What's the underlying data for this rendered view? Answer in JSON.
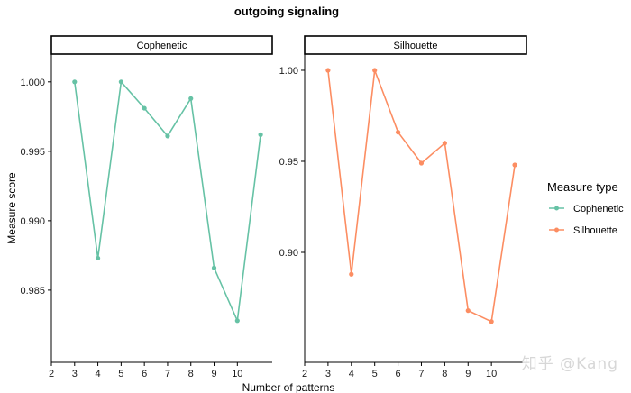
{
  "chart_data": {
    "type": "line",
    "title": "outgoing signaling",
    "xlabel": "Number of patterns",
    "ylabel": "Measure score",
    "legend": {
      "title": "Measure type",
      "placement": "right",
      "entries": [
        {
          "name": "Cophenetic",
          "color": "#66c2a5"
        },
        {
          "name": "Silhouette",
          "color": "#fc8d62"
        }
      ]
    },
    "panels": [
      {
        "strip": "Cophenetic",
        "series": "Cophenetic",
        "color": "#66c2a5",
        "x": [
          3,
          4,
          5,
          6,
          7,
          8,
          9,
          10,
          11
        ],
        "y": [
          1.0,
          0.9873,
          1.0,
          0.9981,
          0.9961,
          0.9988,
          0.9866,
          0.9828,
          0.9962
        ],
        "xlim": [
          2,
          11.5
        ],
        "ylim": [
          0.9798,
          1.002
        ],
        "xticks": [
          "2",
          "3",
          "4",
          "5",
          "6",
          "7",
          "8",
          "9",
          "10"
        ],
        "yticks": [
          "0.985",
          "0.990",
          "0.995",
          "1.000"
        ]
      },
      {
        "strip": "Silhouette",
        "series": "Silhouette",
        "color": "#fc8d62",
        "x": [
          3,
          4,
          5,
          6,
          7,
          8,
          9,
          10,
          11
        ],
        "y": [
          1.0,
          0.888,
          1.0,
          0.966,
          0.949,
          0.96,
          0.868,
          0.862,
          0.948
        ],
        "xlim": [
          2,
          11.5
        ],
        "ylim": [
          0.8396,
          1.0089
        ],
        "xticks": [
          "2",
          "3",
          "4",
          "5",
          "6",
          "7",
          "8",
          "9",
          "10"
        ],
        "yticks": [
          "0.90",
          "0.95",
          "1.00"
        ]
      }
    ]
  },
  "watermark": "知乎 @Kang"
}
